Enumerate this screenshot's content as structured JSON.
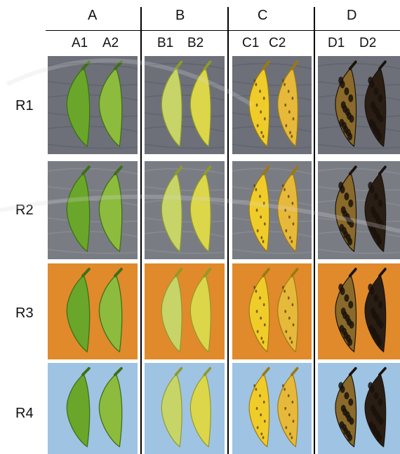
{
  "columns": [
    {
      "label": "A",
      "subs": [
        "A1",
        "A2"
      ]
    },
    {
      "label": "B",
      "subs": [
        "B1",
        "B2"
      ]
    },
    {
      "label": "C",
      "subs": [
        "C1",
        "C2"
      ]
    },
    {
      "label": "D",
      "subs": [
        "D1",
        "D2"
      ]
    }
  ],
  "rows": [
    {
      "label": "R1",
      "background": "grey-wood",
      "bg_color": "#6d7079"
    },
    {
      "label": "R2",
      "background": "grey-stone",
      "bg_color": "#7a7c84"
    },
    {
      "label": "R3",
      "background": "orange",
      "bg_color": "#e08a2c"
    },
    {
      "label": "R4",
      "background": "light-blue",
      "bg_color": "#9ec3e3"
    }
  ],
  "stage_colors": {
    "A": {
      "left": "#6aa62a",
      "right": "#8cbb3e",
      "dark": "#3f6f16"
    },
    "B": {
      "left": "#c7d468",
      "right": "#dcd64a",
      "dark": "#8f9a28"
    },
    "C": {
      "left": "#f0cc2a",
      "right": "#e7b93a",
      "dark": "#9a7a10"
    },
    "D": {
      "left": "#8a6a2a",
      "right": "#2a1e14",
      "dark": "#1a120a"
    }
  }
}
